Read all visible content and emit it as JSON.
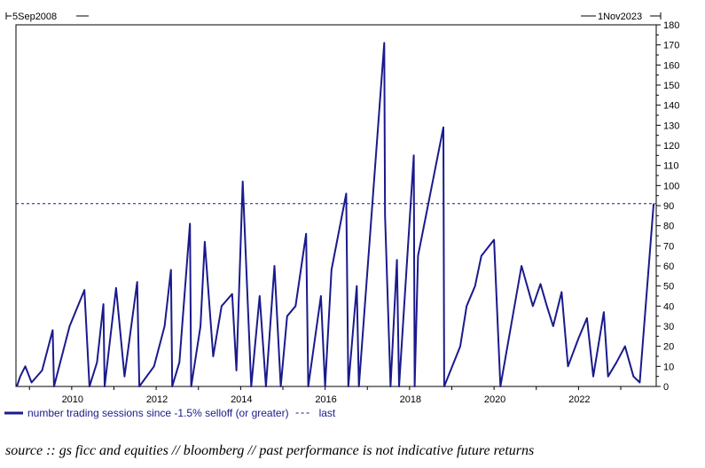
{
  "chart_data": {
    "type": "line",
    "range_start": "5Sep2008",
    "range_end": "1Nov2023",
    "x_ticks": [
      "2010",
      "2012",
      "2014",
      "2016",
      "2018",
      "2020",
      "2022"
    ],
    "x_tick_years": [
      2010,
      2012,
      2014,
      2016,
      2018,
      2020,
      2022
    ],
    "y_ticks": [
      0,
      10,
      20,
      30,
      40,
      50,
      60,
      70,
      80,
      90,
      100,
      110,
      120,
      130,
      140,
      150,
      160,
      170,
      180
    ],
    "ylim": [
      0,
      180
    ],
    "xlim": [
      2008.68,
      2023.84
    ],
    "y_axis_position": "right",
    "grid": false,
    "legend_position": "bottom-left",
    "series": [
      {
        "name": "number trading sessions since -1.5% selloff (or greater)",
        "color": "#1a1a8c",
        "x": [
          2008.7,
          2008.78,
          2008.9,
          2009.05,
          2009.3,
          2009.55,
          2009.58,
          2009.95,
          2010.3,
          2010.42,
          2010.6,
          2010.75,
          2010.78,
          2011.05,
          2011.25,
          2011.55,
          2011.6,
          2011.95,
          2012.2,
          2012.35,
          2012.38,
          2012.55,
          2012.8,
          2012.83,
          2013.05,
          2013.15,
          2013.35,
          2013.55,
          2013.8,
          2013.9,
          2014.05,
          2014.25,
          2014.45,
          2014.6,
          2014.8,
          2014.95,
          2015.1,
          2015.3,
          2015.55,
          2015.6,
          2015.9,
          2016.0,
          2016.15,
          2016.5,
          2016.55,
          2016.75,
          2016.8,
          2017.4,
          2017.42,
          2017.55,
          2017.7,
          2017.75,
          2018.1,
          2018.12,
          2018.2,
          2018.8,
          2018.82,
          2019.2,
          2019.35,
          2019.55,
          2019.7,
          2020.0,
          2020.15,
          2020.4,
          2020.65,
          2020.92,
          2021.1,
          2021.25,
          2021.4,
          2021.6,
          2021.75,
          2022.0,
          2022.2,
          2022.35,
          2022.6,
          2022.7,
          2022.9,
          2023.1,
          2023.3,
          2023.45,
          2023.78
        ],
        "y": [
          0,
          5,
          10,
          2,
          8,
          28,
          0,
          30,
          48,
          0,
          12,
          41,
          0,
          49,
          5,
          52,
          0,
          10,
          30,
          58,
          0,
          12,
          81,
          0,
          30,
          72,
          15,
          40,
          46,
          8,
          102,
          0,
          45,
          0,
          60,
          0,
          35,
          40,
          76,
          0,
          45,
          0,
          58,
          96,
          0,
          50,
          0,
          171,
          85,
          0,
          63,
          0,
          115,
          0,
          65,
          129,
          0,
          20,
          40,
          50,
          65,
          73,
          0,
          30,
          60,
          40,
          51,
          40,
          30,
          47,
          10,
          24,
          34,
          5,
          37,
          5,
          12,
          20,
          5,
          2,
          91
        ]
      },
      {
        "name": "last",
        "color": "#1a1a8c",
        "style": "dashed",
        "value": 91
      }
    ]
  },
  "legend": {
    "series_label": "number trading sessions since -1.5% selloff (or greater)",
    "last_label": "last"
  },
  "source": "source :: gs ficc and equities // bloomberg // past performance is not indicative future returns"
}
